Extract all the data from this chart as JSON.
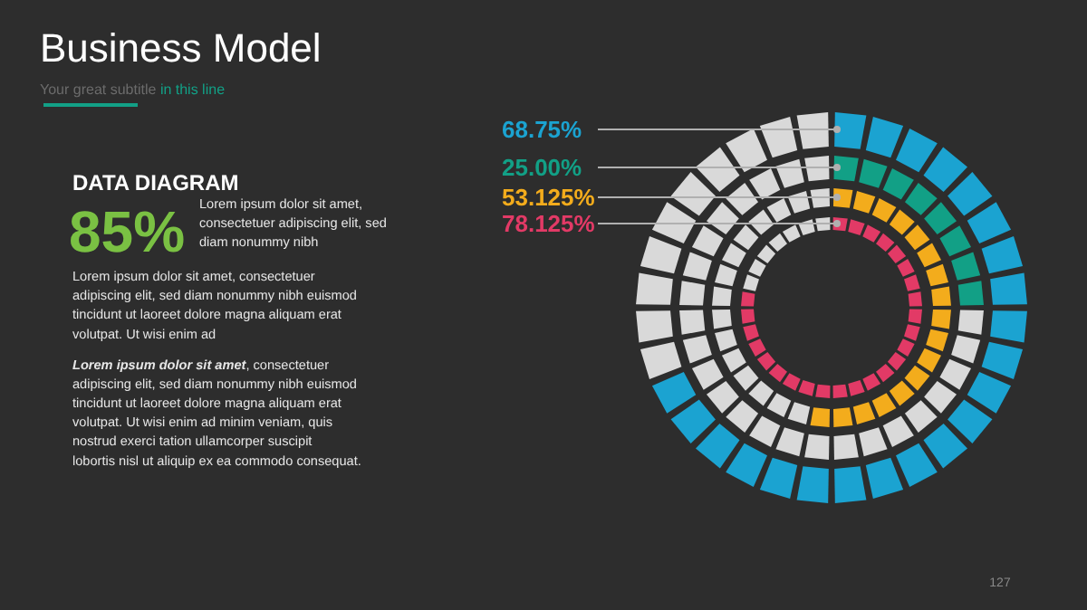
{
  "chart_data": [
    {
      "type": "other",
      "title": "Business Model",
      "subtitle": "Your great subtitle in this line",
      "annotations": [
        "DATA DIAGRAM",
        "85%",
        "Lorem ipsum dolor sit amet, consectetuer adipiscing elit, sed diam nonummy nibh",
        "Lorem ipsum dolor sit amet, consectetuer adipiscing elit, sed diam nonummy nibh euismod tincidunt ut laoreet dolore magna aliquam erat volutpat. Ut wisi enim ad",
        "Lorem ipsum dolor sit amet, consectetuer adipiscing elit, sed diam nonummy nibh euismod tincidunt ut laoreet dolore magna aliquam erat volutpat. Ut wisi enim ad minim veniam, quis nostrud exerci tation ullamcorper suscipit lobortis nisl ut aliquip ex ea commodo consequat.",
        "127"
      ]
    },
    {
      "type": "other",
      "categories": [
        null,
        null,
        null,
        null
      ],
      "values": [
        68.75,
        25,
        53.125,
        78.125
      ],
      "colors": [
        "#1ba3d1",
        "#12a086",
        "#f3ac1c",
        "#e23a66"
      ],
      "value_labels": [
        "68.75%",
        "25.00%",
        "53.125%",
        "78.125%"
      ]
    }
  ]
}
